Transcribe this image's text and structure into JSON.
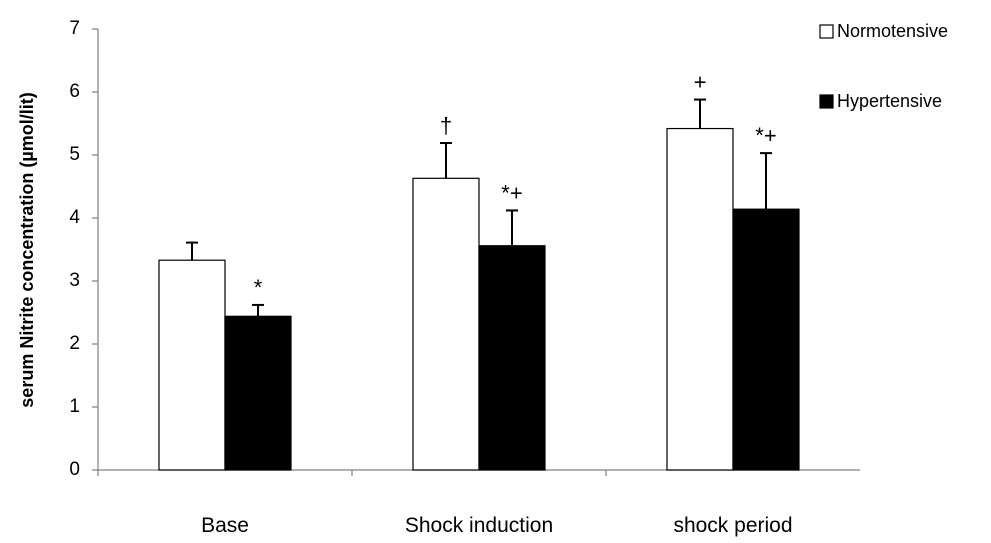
{
  "chart_data": {
    "type": "bar",
    "title": "",
    "xlabel": "",
    "ylabel": "serum Nitrite concentration (µmol/lit)",
    "ylim": [
      0,
      7
    ],
    "yticks": [
      0,
      1,
      2,
      3,
      4,
      5,
      6,
      7
    ],
    "grid": false,
    "legend_position": "top-right",
    "categories": [
      "Base",
      "Shock induction",
      "shock period"
    ],
    "series": [
      {
        "name": "Normotensive",
        "color": "#ffffff",
        "stroke": "#000000",
        "values": [
          3.33,
          4.63,
          5.42
        ],
        "errors": [
          0.28,
          0.56,
          0.46
        ],
        "annotations": [
          "",
          "†",
          "+"
        ]
      },
      {
        "name": "Hypertensive",
        "color": "#000000",
        "stroke": "#000000",
        "values": [
          2.44,
          3.56,
          4.14
        ],
        "errors": [
          0.18,
          0.56,
          0.89
        ],
        "annotations": [
          "*",
          "*+",
          "*+"
        ]
      }
    ]
  }
}
